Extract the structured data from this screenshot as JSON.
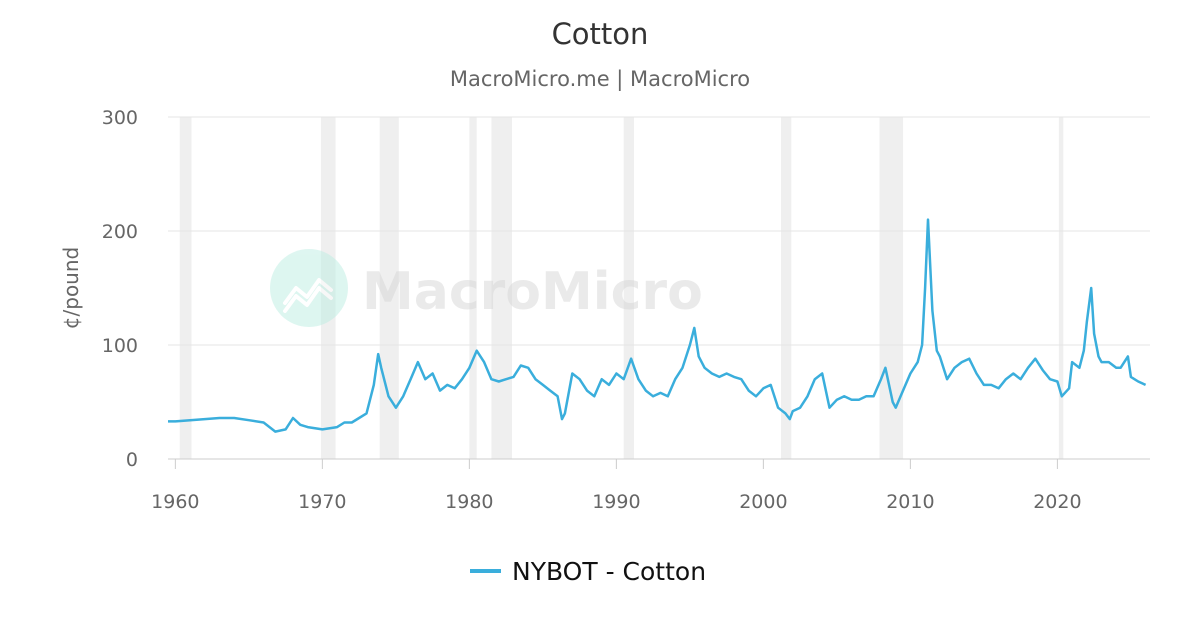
{
  "chart_data": {
    "type": "line",
    "title": "Cotton",
    "subtitle": "MacroMicro.me | MacroMicro",
    "ylabel": "¢/pound",
    "xlabel": "",
    "xlim": [
      1959.5,
      2026.3
    ],
    "ylim": [
      0,
      300
    ],
    "yticks": [
      0,
      100,
      200,
      300
    ],
    "xticks": [
      1960,
      1970,
      1980,
      1990,
      2000,
      2010,
      2020
    ],
    "grid": "horizontal",
    "legend_position": "bottom-center",
    "recessions": [
      [
        1960.3,
        1961.1
      ],
      [
        1969.9,
        1970.9
      ],
      [
        1973.9,
        1975.2
      ],
      [
        1980.0,
        1980.5
      ],
      [
        1981.5,
        1982.9
      ],
      [
        1990.5,
        1991.2
      ],
      [
        2001.2,
        2001.9
      ],
      [
        2007.9,
        2009.5
      ],
      [
        2020.1,
        2020.4
      ]
    ],
    "series": [
      {
        "name": "NYBOT - Cotton",
        "color": "#3aaedc",
        "x": [
          1959.5,
          1960,
          1961,
          1962,
          1963,
          1964,
          1965,
          1966,
          1966.8,
          1967.5,
          1968,
          1968.5,
          1969,
          1970,
          1971,
          1971.5,
          1972,
          1972.5,
          1973,
          1973.5,
          1973.8,
          1974,
          1974.5,
          1975,
          1975.5,
          1976,
          1976.5,
          1977,
          1977.5,
          1978,
          1978.5,
          1979,
          1979.5,
          1980,
          1980.5,
          1981,
          1981.5,
          1982,
          1982.5,
          1983,
          1983.5,
          1984,
          1984.5,
          1985,
          1985.5,
          1986,
          1986.3,
          1986.5,
          1987,
          1987.5,
          1988,
          1988.5,
          1989,
          1989.5,
          1990,
          1990.5,
          1991,
          1991.5,
          1992,
          1992.5,
          1993,
          1993.5,
          1994,
          1994.5,
          1995,
          1995.3,
          1995.6,
          1996,
          1996.5,
          1997,
          1997.5,
          1998,
          1998.5,
          1999,
          1999.5,
          2000,
          2000.5,
          2001,
          2001.5,
          2001.8,
          2002,
          2002.5,
          2003,
          2003.5,
          2004,
          2004.5,
          2005,
          2005.5,
          2006,
          2006.5,
          2007,
          2007.5,
          2008,
          2008.3,
          2008.8,
          2009,
          2009.5,
          2010,
          2010.5,
          2010.8,
          2011,
          2011.2,
          2011.5,
          2011.8,
          2012,
          2012.5,
          2013,
          2013.5,
          2014,
          2014.5,
          2015,
          2015.5,
          2016,
          2016.5,
          2017,
          2017.5,
          2018,
          2018.5,
          2019,
          2019.5,
          2020,
          2020.3,
          2020.8,
          2021,
          2021.5,
          2021.8,
          2022,
          2022.3,
          2022.5,
          2022.8,
          2023,
          2023.5,
          2024,
          2024.3,
          2024.8,
          2025,
          2025.5,
          2026
        ],
        "y": [
          33,
          33,
          34,
          35,
          36,
          36,
          34,
          32,
          24,
          26,
          36,
          30,
          28,
          26,
          28,
          32,
          32,
          36,
          40,
          65,
          92,
          80,
          55,
          45,
          55,
          70,
          85,
          70,
          75,
          60,
          65,
          62,
          70,
          80,
          95,
          85,
          70,
          68,
          70,
          72,
          82,
          80,
          70,
          65,
          60,
          55,
          35,
          40,
          75,
          70,
          60,
          55,
          70,
          65,
          75,
          70,
          88,
          70,
          60,
          55,
          58,
          55,
          70,
          80,
          100,
          115,
          90,
          80,
          75,
          72,
          75,
          72,
          70,
          60,
          55,
          62,
          65,
          45,
          40,
          35,
          42,
          45,
          55,
          70,
          75,
          45,
          52,
          55,
          52,
          52,
          55,
          55,
          70,
          80,
          50,
          45,
          60,
          75,
          85,
          100,
          150,
          210,
          130,
          95,
          90,
          70,
          80,
          85,
          88,
          75,
          65,
          65,
          62,
          70,
          75,
          70,
          80,
          88,
          78,
          70,
          68,
          55,
          62,
          85,
          80,
          95,
          120,
          150,
          110,
          90,
          85,
          85,
          80,
          80,
          90,
          72,
          68,
          65
        ]
      }
    ]
  },
  "watermark": {
    "text": "MacroMicro"
  }
}
